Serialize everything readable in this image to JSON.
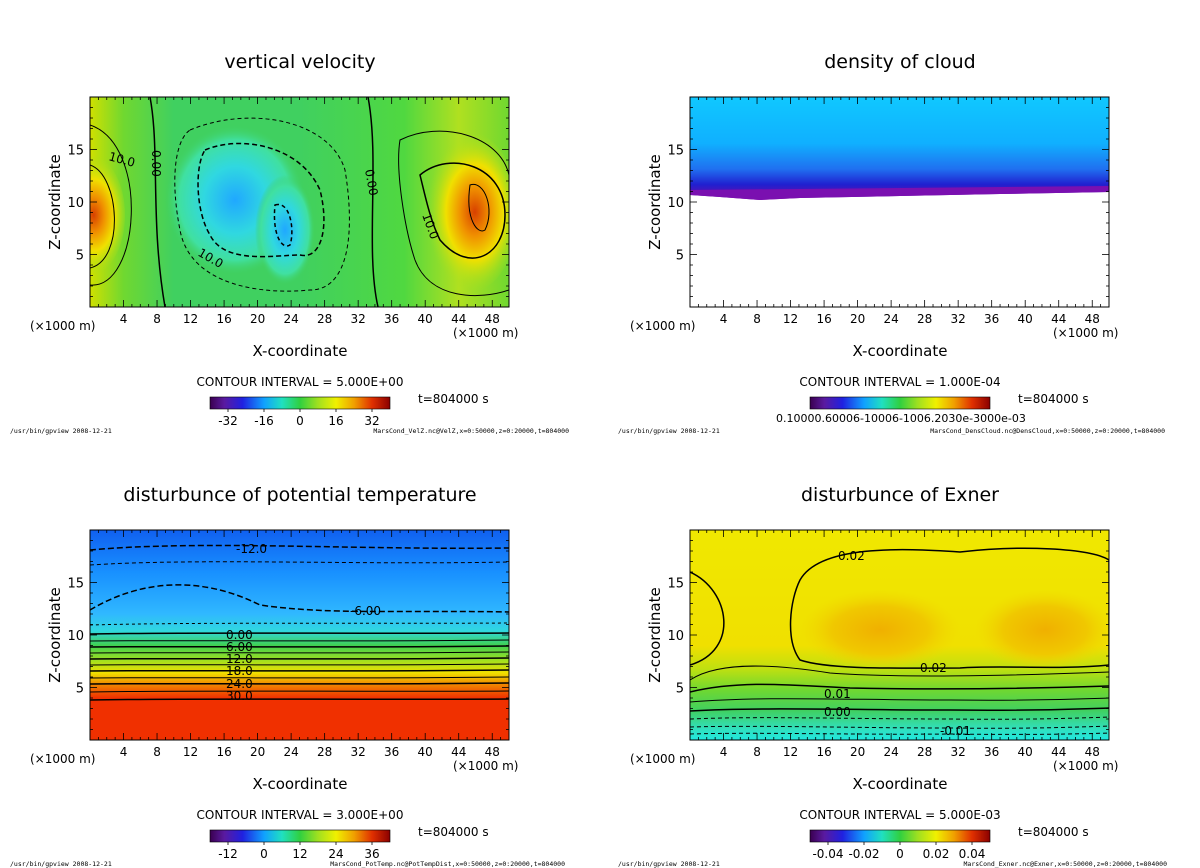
{
  "colors": {
    "background": "#ffffff",
    "frame": "#000000"
  },
  "chart_data": [
    {
      "type": "heatmap",
      "title": "vertical velocity",
      "xlabel": "X-coordinate",
      "ylabel": "Z-coordinate",
      "x_unit_left": "(×1000 m)",
      "x_unit_right": "(×1000 m)",
      "xlim": [
        0,
        50
      ],
      "ylim": [
        0,
        20
      ],
      "x_ticks": [
        "4",
        "8",
        "12",
        "16",
        "20",
        "24",
        "28",
        "32",
        "36",
        "40",
        "44",
        "48"
      ],
      "y_ticks": [
        "5",
        "10",
        "15"
      ],
      "contour_labels": [
        "10.0",
        "0.00",
        "10.0",
        "0.00",
        "10.0"
      ],
      "contour_interval": "CONTOUR INTERVAL = 5.000E+00",
      "time": "t=804000 s",
      "colorbar_labels": [
        "-32",
        "-16",
        "0",
        "16",
        "32"
      ],
      "footer_left": "/usr/bin/gpview  2008-12-21",
      "footer_right": "MarsCond_VelZ.nc@VelZ,x=0:50000,z=0:20000,t=804000",
      "value_range": [
        -40,
        40
      ]
    },
    {
      "type": "heatmap",
      "title": "density of cloud",
      "xlabel": "X-coordinate",
      "ylabel": "Z-coordinate",
      "x_unit_left": "(×1000 m)",
      "x_unit_right": "(×1000 m)",
      "xlim": [
        0,
        50
      ],
      "ylim": [
        0,
        20
      ],
      "x_ticks": [
        "4",
        "8",
        "12",
        "16",
        "20",
        "24",
        "28",
        "32",
        "36",
        "40",
        "44",
        "48"
      ],
      "y_ticks": [
        "5",
        "10",
        "15"
      ],
      "contour_labels": [],
      "contour_interval": "CONTOUR INTERVAL = 1.000E-04",
      "time": "t=804000 s",
      "colorbar_labels": [
        "0.10000.60006-10006-1006.2030e-3000e-03"
      ],
      "footer_left": "/usr/bin/gpview  2008-12-21",
      "footer_right": "MarsCond_DensCloud.nc@DensCloud,x=0:50000,z=0:20000,t=804000",
      "cloud_base_km": 10.8
    },
    {
      "type": "heatmap",
      "title": "disturbunce of potential temperature",
      "xlabel": "X-coordinate",
      "ylabel": "Z-coordinate",
      "x_unit_left": "(×1000 m)",
      "x_unit_right": "(×1000 m)",
      "xlim": [
        0,
        50
      ],
      "ylim": [
        0,
        20
      ],
      "x_ticks": [
        "4",
        "8",
        "12",
        "16",
        "20",
        "24",
        "28",
        "32",
        "36",
        "40",
        "44",
        "48"
      ],
      "y_ticks": [
        "5",
        "10",
        "15"
      ],
      "contour_labels": [
        "-12.0",
        "-6.00",
        "0.00",
        "6.00",
        "12.0",
        "18.0",
        "24.0",
        "30.0"
      ],
      "contour_interval": "CONTOUR INTERVAL = 3.000E+00",
      "time": "t=804000 s",
      "colorbar_labels": [
        "-12",
        "0",
        "12",
        "24",
        "36"
      ],
      "footer_left": "/usr/bin/gpview  2008-12-21",
      "footer_right": "MarsCond_PotTemp.nc@PotTempDist,x=0:50000,z=0:20000,t=804000",
      "value_range": [
        -18,
        42
      ]
    },
    {
      "type": "heatmap",
      "title": "disturbunce of Exner",
      "xlabel": "X-coordinate",
      "ylabel": "Z-coordinate",
      "x_unit_left": "(×1000 m)",
      "x_unit_right": "(×1000 m)",
      "xlim": [
        0,
        50
      ],
      "ylim": [
        0,
        20
      ],
      "x_ticks": [
        "4",
        "8",
        "12",
        "16",
        "20",
        "24",
        "28",
        "32",
        "36",
        "40",
        "44",
        "48"
      ],
      "y_ticks": [
        "5",
        "10",
        "15"
      ],
      "contour_labels": [
        "0.02",
        "0.02",
        "0.01",
        "0.00",
        "-0.01"
      ],
      "contour_interval": "CONTOUR INTERVAL = 5.000E-03",
      "time": "t=804000 s",
      "colorbar_labels": [
        "-0.04",
        "-0.02",
        "0",
        "0.02",
        "0.04"
      ],
      "footer_left": "/usr/bin/gpview  2008-12-21",
      "footer_right": "MarsCond_Exner.nc@Exner,x=0:50000,z=0:20000,t=804000",
      "value_range": [
        -0.05,
        0.05
      ]
    }
  ]
}
